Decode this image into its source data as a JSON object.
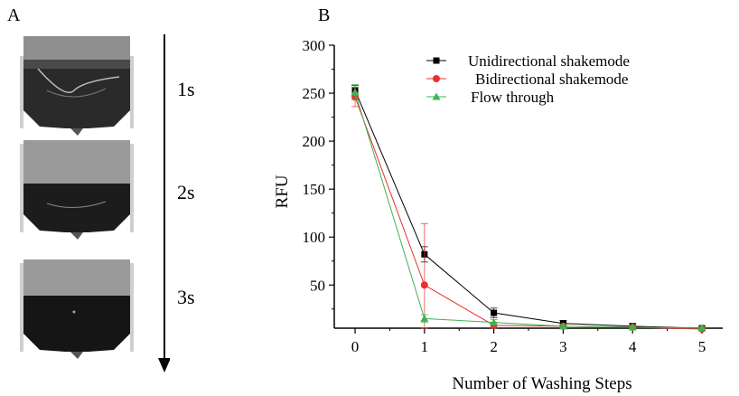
{
  "panels": {
    "a_label": "A",
    "b_label": "B"
  },
  "photo_panel": {
    "times": [
      "1s",
      "2s",
      "3s"
    ]
  },
  "chart_data": {
    "type": "line",
    "xlabel": "Number of Washing Steps",
    "ylabel": "RFU",
    "x": [
      0,
      1,
      2,
      3,
      4,
      5
    ],
    "xticks": [
      "0",
      "1",
      "2",
      "3",
      "4",
      "5"
    ],
    "yticks": [
      "50",
      "100",
      "150",
      "200",
      "250",
      "300"
    ],
    "xlim": [
      -0.3,
      5.3
    ],
    "ylim": [
      5,
      300
    ],
    "grid": false,
    "legend_position": "top-right",
    "series": [
      {
        "name": "Unidirectional shakemode",
        "color": "#000000",
        "marker": "square",
        "values": [
          253,
          82,
          21,
          10,
          7,
          5
        ],
        "errors": [
          5,
          8,
          5,
          3,
          3,
          2
        ]
      },
      {
        "name": "Bidirectional shakemode",
        "color": "#e8302e",
        "marker": "circle",
        "values": [
          246,
          50,
          8,
          7,
          6,
          4
        ],
        "errors": [
          10,
          64,
          3,
          2,
          2,
          2
        ]
      },
      {
        "name": "Flow through",
        "color": "#3fb34f",
        "marker": "triangle",
        "values": [
          251,
          15,
          11,
          7,
          6,
          5
        ],
        "errors": [
          8,
          4,
          3,
          2,
          2,
          2
        ]
      }
    ]
  }
}
